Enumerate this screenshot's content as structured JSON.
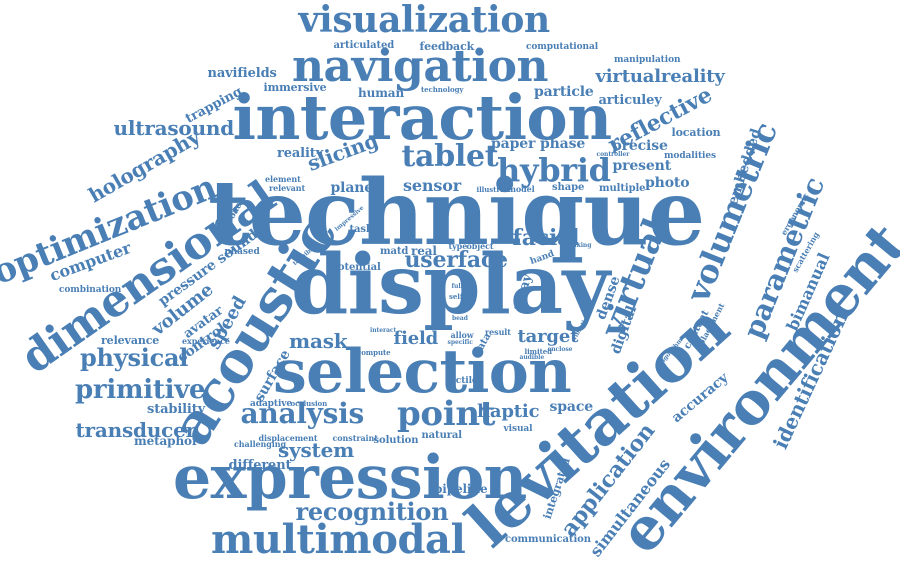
{
  "color": "#4a7fb5",
  "words": [
    {
      "text": "technique",
      "weight": 10
    },
    {
      "text": "display",
      "weight": 10
    },
    {
      "text": "interaction",
      "weight": 9
    },
    {
      "text": "selection",
      "weight": 9
    },
    {
      "text": "levitation",
      "weight": 9
    },
    {
      "text": "environment",
      "weight": 9
    },
    {
      "text": "expression",
      "weight": 8
    },
    {
      "text": "acoustic",
      "weight": 8
    },
    {
      "text": "navigation",
      "weight": 7
    },
    {
      "text": "dimensional",
      "weight": 7
    },
    {
      "text": "multimodal",
      "weight": 6
    },
    {
      "text": "visualization",
      "weight": 6
    },
    {
      "text": "optimization",
      "weight": 6
    },
    {
      "text": "volumetric",
      "weight": 6
    },
    {
      "text": "virtual",
      "weight": 6
    },
    {
      "text": "point",
      "weight": 5
    },
    {
      "text": "analysis",
      "weight": 5
    },
    {
      "text": "hybrid",
      "weight": 5
    },
    {
      "text": "tablet",
      "weight": 5
    },
    {
      "text": "parametric",
      "weight": 5
    },
    {
      "text": "identification",
      "weight": 4
    },
    {
      "text": "application",
      "weight": 4
    },
    {
      "text": "recognition",
      "weight": 4
    },
    {
      "text": "primitive",
      "weight": 4
    },
    {
      "text": "physical",
      "weight": 4
    },
    {
      "text": "ultrasound",
      "weight": 4
    },
    {
      "text": "transducer",
      "weight": 4
    },
    {
      "text": "holography",
      "weight": 4
    },
    {
      "text": "reflective",
      "weight": 4
    },
    {
      "text": "virtualreality",
      "weight": 4
    },
    {
      "text": "slicing",
      "weight": 4
    },
    {
      "text": "facial",
      "weight": 4
    },
    {
      "text": "userface",
      "weight": 4
    },
    {
      "text": "system",
      "weight": 4
    },
    {
      "text": "haptic",
      "weight": 3
    },
    {
      "text": "mask",
      "weight": 3
    },
    {
      "text": "speed",
      "weight": 3
    },
    {
      "text": "target",
      "weight": 3
    },
    {
      "text": "field",
      "weight": 3
    },
    {
      "text": "surface",
      "weight": 3
    },
    {
      "text": "bimanual",
      "weight": 3
    },
    {
      "text": "simultaneous",
      "weight": 3
    },
    {
      "text": "embedded",
      "weight": 3
    },
    {
      "text": "digital",
      "weight": 3
    },
    {
      "text": "volume",
      "weight": 3
    },
    {
      "text": "computer",
      "weight": 3
    },
    {
      "text": "sensor",
      "weight": 3
    },
    {
      "text": "paper phase",
      "weight": 3
    },
    {
      "text": "particle",
      "weight": 3
    },
    {
      "text": "articuley",
      "weight": 3
    },
    {
      "text": "present",
      "weight": 3
    },
    {
      "text": "photo",
      "weight": 3
    },
    {
      "text": "precise",
      "weight": 3
    },
    {
      "text": "navifields",
      "weight": 3
    },
    {
      "text": "pressure sound",
      "weight": 3
    },
    {
      "text": "stability",
      "weight": 3
    },
    {
      "text": "metaphor",
      "weight": 3
    },
    {
      "text": "different",
      "weight": 2
    },
    {
      "text": "pipeline",
      "weight": 2
    },
    {
      "text": "integrated",
      "weight": 2
    },
    {
      "text": "accuracy",
      "weight": 2
    },
    {
      "text": "space",
      "weight": 2
    },
    {
      "text": "array",
      "weight": 2
    },
    {
      "text": "dense",
      "weight": 2
    },
    {
      "text": "reality",
      "weight": 2
    },
    {
      "text": "plane",
      "weight": 2
    },
    {
      "text": "control",
      "weight": 2
    },
    {
      "text": "avatar",
      "weight": 2
    },
    {
      "text": "relevance",
      "weight": 2
    },
    {
      "text": "human",
      "weight": 2
    },
    {
      "text": "trapping",
      "weight": 2
    },
    {
      "text": "immersive",
      "weight": 2
    },
    {
      "text": "feedback",
      "weight": 2
    },
    {
      "text": "articulated",
      "weight": 2
    },
    {
      "text": "computational",
      "weight": 1
    },
    {
      "text": "manipulation",
      "weight": 1
    },
    {
      "text": "location",
      "weight": 2
    },
    {
      "text": "modalities",
      "weight": 1
    },
    {
      "text": "ergonomic",
      "weight": 1
    },
    {
      "text": "scattering",
      "weight": 1
    },
    {
      "text": "content",
      "weight": 1
    },
    {
      "text": "placement",
      "weight": 1
    },
    {
      "text": "combination",
      "weight": 1
    },
    {
      "text": "experience",
      "weight": 1
    },
    {
      "text": "adaptive",
      "weight": 1
    },
    {
      "text": "occlusion",
      "weight": 1
    },
    {
      "text": "challenging",
      "weight": 1
    },
    {
      "text": "displacement",
      "weight": 1
    },
    {
      "text": "constraint",
      "weight": 1
    },
    {
      "text": "solution",
      "weight": 1
    },
    {
      "text": "natural",
      "weight": 1
    },
    {
      "text": "visual",
      "weight": 1
    },
    {
      "text": "communication",
      "weight": 1
    },
    {
      "text": "tactile",
      "weight": 1
    },
    {
      "text": "phased",
      "weight": 1
    },
    {
      "text": "approach",
      "weight": 1
    },
    {
      "text": "potential",
      "weight": 1
    },
    {
      "text": "element",
      "weight": 1
    },
    {
      "text": "relevant",
      "weight": 1
    },
    {
      "text": "task",
      "weight": 1
    },
    {
      "text": "matd",
      "weight": 1
    },
    {
      "text": "real",
      "weight": 1
    },
    {
      "text": "model",
      "weight": 1
    },
    {
      "text": "shape",
      "weight": 1
    },
    {
      "text": "multiple",
      "weight": 1
    },
    {
      "text": "illustrate",
      "weight": 1
    },
    {
      "text": "hand",
      "weight": 1
    },
    {
      "text": "type",
      "weight": 1
    },
    {
      "text": "object",
      "weight": 1
    },
    {
      "text": "allow",
      "weight": 1
    },
    {
      "text": "result",
      "weight": 1
    },
    {
      "text": "data",
      "weight": 1
    },
    {
      "text": "limited",
      "weight": 1
    },
    {
      "text": "compute",
      "weight": 1
    },
    {
      "text": "specific",
      "weight": 1
    },
    {
      "text": "interact",
      "weight": 1
    },
    {
      "text": "self",
      "weight": 1
    },
    {
      "text": "full",
      "weight": 1
    },
    {
      "text": "bead",
      "weight": 1
    },
    {
      "text": "technology",
      "weight": 1
    },
    {
      "text": "controller",
      "weight": 1
    },
    {
      "text": "tangible",
      "weight": 1
    },
    {
      "text": "impressive",
      "weight": 1
    },
    {
      "text": "making",
      "weight": 1
    },
    {
      "text": "vibration",
      "weight": 1
    },
    {
      "text": "algorithm",
      "weight": 1
    },
    {
      "text": "audible",
      "weight": 1
    },
    {
      "text": "enclose",
      "weight": 1
    }
  ]
}
